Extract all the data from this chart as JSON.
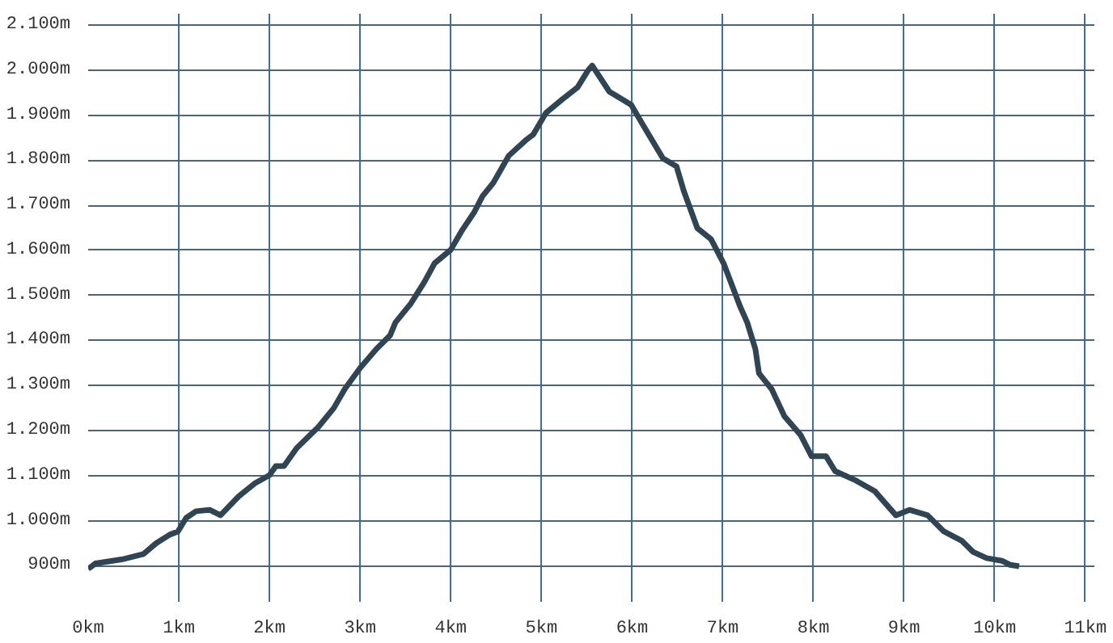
{
  "chart_data": {
    "type": "line",
    "x": [
      0,
      0.08,
      0.37,
      0.61,
      0.75,
      0.9,
      0.99,
      1.08,
      1.19,
      1.34,
      1.46,
      1.66,
      1.84,
      2.0,
      2.07,
      2.16,
      2.3,
      2.54,
      2.71,
      2.83,
      3.0,
      3.18,
      3.33,
      3.39,
      3.56,
      3.71,
      3.82,
      4.0,
      4.12,
      4.26,
      4.35,
      4.47,
      4.64,
      4.82,
      4.91,
      5.05,
      5.23,
      5.4,
      5.51,
      5.56,
      5.75,
      5.99,
      6.13,
      6.34,
      6.49,
      6.57,
      6.72,
      6.87,
      7.01,
      7.19,
      7.27,
      7.36,
      7.4,
      7.54,
      7.68,
      7.86,
      7.98,
      8.14,
      8.24,
      8.47,
      8.68,
      8.91,
      9.06,
      9.26,
      9.44,
      9.64,
      9.76,
      9.91,
      10.08,
      10.17,
      10.27
    ],
    "series": [
      {
        "color": "#2f4554",
        "values": [
          893,
          905,
          914,
          926,
          950,
          969,
          976,
          1006,
          1021,
          1024,
          1012,
          1054,
          1083,
          1101,
          1121,
          1121,
          1161,
          1208,
          1250,
          1292,
          1339,
          1381,
          1411,
          1440,
          1482,
          1530,
          1571,
          1601,
          1643,
          1685,
          1720,
          1750,
          1810,
          1843,
          1857,
          1905,
          1935,
          1962,
          1998,
          2010,
          1952,
          1923,
          1875,
          1804,
          1786,
          1732,
          1649,
          1625,
          1571,
          1476,
          1440,
          1381,
          1327,
          1292,
          1232,
          1190,
          1143,
          1143,
          1110,
          1089,
          1065,
          1012,
          1024,
          1012,
          976,
          955,
          931,
          917,
          911,
          902,
          899
        ]
      }
    ],
    "xlim": [
      0,
      11.1
    ],
    "ylim": [
      820,
      2125
    ],
    "xticks": [
      {
        "value": 0,
        "label": "0km"
      },
      {
        "value": 1,
        "label": "1km"
      },
      {
        "value": 2,
        "label": "2km"
      },
      {
        "value": 3,
        "label": "3km"
      },
      {
        "value": 4,
        "label": "4km"
      },
      {
        "value": 5,
        "label": "5km"
      },
      {
        "value": 6,
        "label": "6km"
      },
      {
        "value": 7,
        "label": "7km"
      },
      {
        "value": 8,
        "label": "8km"
      },
      {
        "value": 9,
        "label": "9km"
      },
      {
        "value": 10,
        "label": "10km"
      },
      {
        "value": 11,
        "label": "11km"
      }
    ],
    "yticks": [
      {
        "value": 900,
        "label": "900m"
      },
      {
        "value": 1000,
        "label": "1.000m"
      },
      {
        "value": 1100,
        "label": "1.100m"
      },
      {
        "value": 1200,
        "label": "1.200m"
      },
      {
        "value": 1300,
        "label": "1.300m"
      },
      {
        "value": 1400,
        "label": "1.400m"
      },
      {
        "value": 1500,
        "label": "1.500m"
      },
      {
        "value": 1600,
        "label": "1.600m"
      },
      {
        "value": 1700,
        "label": "1.700m"
      },
      {
        "value": 1800,
        "label": "1.800m"
      },
      {
        "value": 1900,
        "label": "1.900m"
      },
      {
        "value": 2000,
        "label": "2.000m"
      },
      {
        "value": 2100,
        "label": "2.100m"
      }
    ],
    "grid": true,
    "line_style": "solid"
  }
}
